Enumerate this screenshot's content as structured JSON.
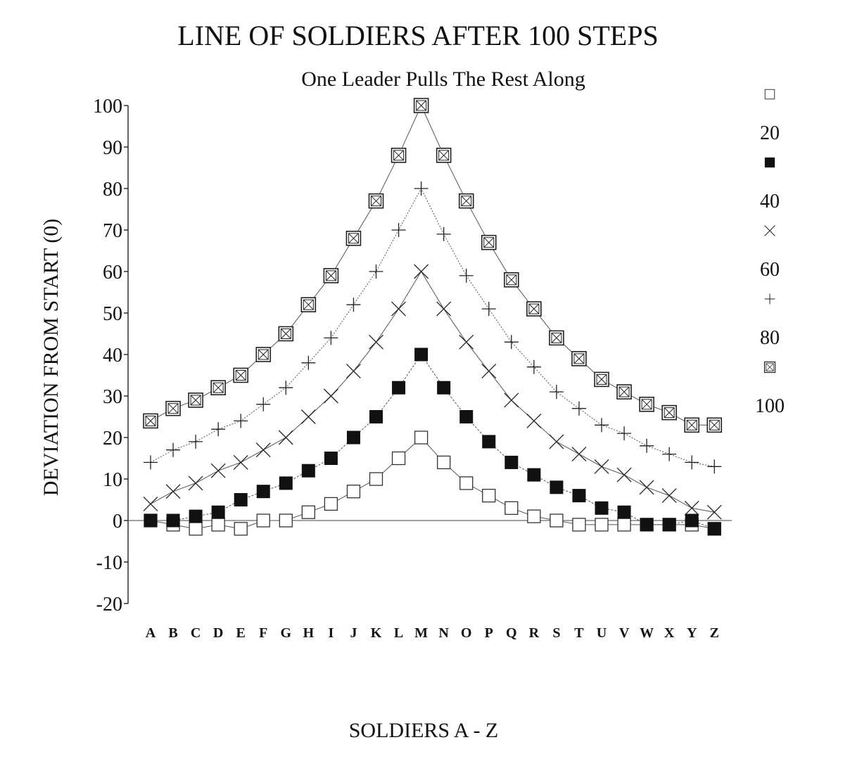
{
  "chart_data": {
    "type": "line",
    "title": "LINE OF SOLDIERS AFTER 100 STEPS",
    "subtitle": "One Leader Pulls The Rest Along",
    "xlabel": "SOLDIERS A - Z",
    "ylabel": "DEVIATION FROM START (0)",
    "ylim": [
      -20,
      100
    ],
    "yticks": [
      100,
      90,
      80,
      70,
      60,
      50,
      40,
      30,
      20,
      10,
      0,
      -10,
      -20
    ],
    "grid": false,
    "legend_placement": "right",
    "categories": [
      "A",
      "B",
      "C",
      "D",
      "E",
      "F",
      "G",
      "H",
      "I",
      "J",
      "K",
      "L",
      "M",
      "N",
      "O",
      "P",
      "Q",
      "R",
      "S",
      "T",
      "U",
      "V",
      "W",
      "X",
      "Y",
      "Z"
    ],
    "series": [
      {
        "name": "20",
        "marker": "open-square",
        "values": [
          0,
          -1,
          -2,
          -1,
          -2,
          0,
          0,
          2,
          4,
          7,
          10,
          15,
          20,
          14,
          9,
          6,
          3,
          1,
          0,
          -1,
          -1,
          -1,
          -1,
          -1,
          -1,
          -2
        ]
      },
      {
        "name": "40",
        "marker": "filled-square",
        "values": [
          0,
          0,
          1,
          2,
          5,
          7,
          9,
          12,
          15,
          20,
          25,
          32,
          40,
          32,
          25,
          19,
          14,
          11,
          8,
          6,
          3,
          2,
          -1,
          -1,
          0,
          -2
        ]
      },
      {
        "name": "60",
        "marker": "x-cross",
        "values": [
          4,
          7,
          9,
          12,
          14,
          17,
          20,
          25,
          30,
          36,
          43,
          51,
          60,
          51,
          43,
          36,
          29,
          24,
          19,
          16,
          13,
          11,
          8,
          6,
          3,
          2
        ]
      },
      {
        "name": "80",
        "marker": "plus",
        "values": [
          14,
          17,
          19,
          22,
          24,
          28,
          32,
          38,
          44,
          52,
          60,
          70,
          80,
          69,
          59,
          51,
          43,
          37,
          31,
          27,
          23,
          21,
          18,
          16,
          14,
          13
        ]
      },
      {
        "name": "100",
        "marker": "boxed-x",
        "values": [
          24,
          27,
          29,
          32,
          35,
          40,
          45,
          52,
          59,
          68,
          77,
          88,
          100,
          88,
          77,
          67,
          58,
          51,
          44,
          39,
          34,
          31,
          28,
          26,
          23,
          23
        ]
      }
    ]
  }
}
